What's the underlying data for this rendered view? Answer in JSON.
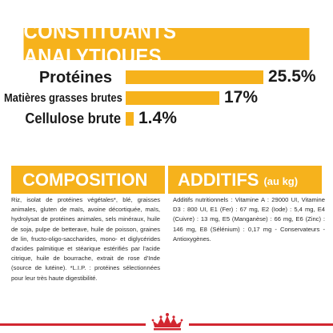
{
  "colors": {
    "accent": "#f6b21c",
    "brand_red": "#d22630",
    "text": "#1a1a1a"
  },
  "constituants": {
    "title": "CONSTITUANTS ANALYTIQUES",
    "rows": [
      {
        "label": "Protéines",
        "value": "25.5%",
        "level": 25.5
      },
      {
        "label": "Matières grasses brutes",
        "value": "17%",
        "level": 17
      },
      {
        "label": "Cellulose brute",
        "value": "1.4%",
        "level": 1.4
      }
    ]
  },
  "composition": {
    "title": "COMPOSITION",
    "text": "Riz, isolat de protéines végétales*, blé, graisses animales, gluten de maïs, avoine décortiquée, maïs, hydrolysat de protéines animales, sels minéraux, huile de soja, pulpe de betterave, huile de poisson, graines de lin, fructo-oligo-saccharides, mono- et diglycérides d'acides palmitique et stéarique estérifiés par l'acide citrique, huile de bourrache, extrait de rose d'Inde (source de lutéine). *L.I.P. : protéines sélectionnées pour leur très haute digestibilité."
  },
  "additifs": {
    "title": "ADDITIFS",
    "unit": "(au kg)",
    "text": "Additifs nutritionnels : Vitamine A : 29000 UI, Vitamine D3 : 800 UI, E1 (Fer) : 67 mg, E2 (Iode) : 5,4 mg, E4 (Cuivre) : 13 mg, E5 (Manganèse) : 66 mg, E6 (Zinc) : 146 mg, E8 (Sélénium) : 0,17 mg - Conservateurs - Antioxygènes."
  },
  "footer": {
    "logo_icon": "royal-crown-icon"
  }
}
